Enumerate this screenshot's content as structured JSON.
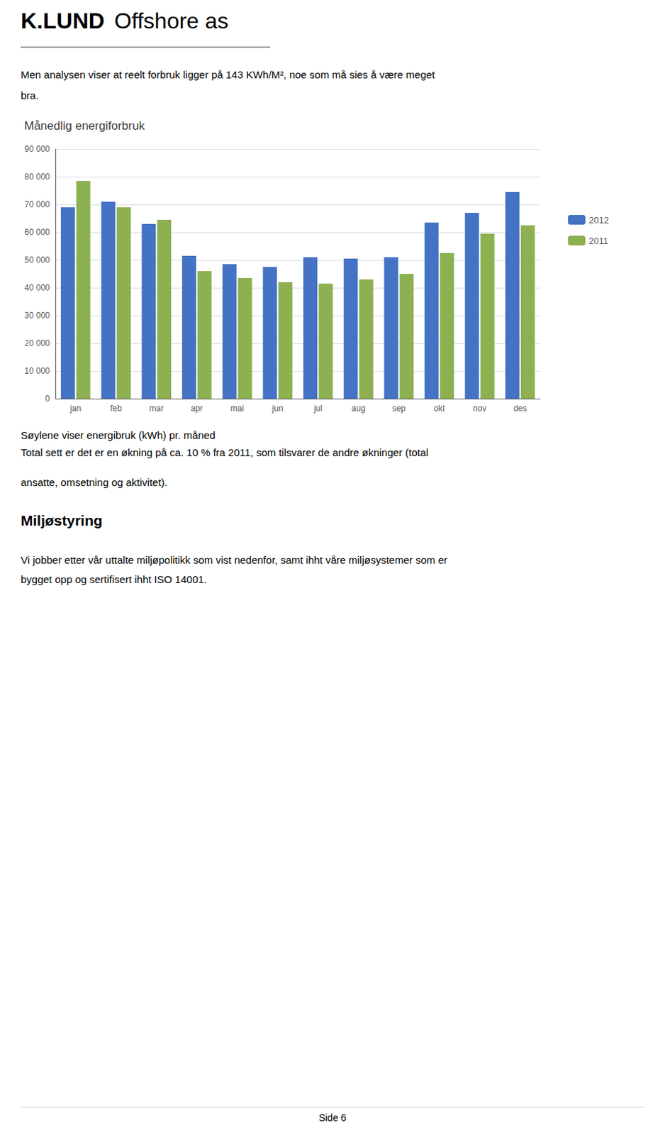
{
  "chart_data": {
    "type": "bar",
    "title": "Månedlig energiforbruk",
    "categories": [
      "jan",
      "feb",
      "mar",
      "apr",
      "mai",
      "jun",
      "jul",
      "aug",
      "sep",
      "okt",
      "nov",
      "des"
    ],
    "series": [
      {
        "name": "2012",
        "color": "#4472C4",
        "values": [
          69000,
          71000,
          63000,
          51500,
          48500,
          47500,
          51000,
          50500,
          51000,
          63500,
          67000,
          74500
        ]
      },
      {
        "name": "2011",
        "color": "#8DB050",
        "values": [
          78500,
          69000,
          64500,
          46000,
          43500,
          42000,
          41500,
          43000,
          45000,
          52500,
          59500,
          62500
        ]
      }
    ],
    "ylim": [
      0,
      90000
    ],
    "yticks": [
      0,
      {
        "value": 10000,
        "label": "10 000"
      },
      {
        "value": 20000,
        "label": "20 000"
      },
      {
        "value": 30000,
        "label": "30 000"
      },
      {
        "value": 40000,
        "label": "40 000"
      },
      {
        "value": 50000,
        "label": "50 000"
      },
      {
        "value": 60000,
        "label": "60 000"
      },
      {
        "value": 70000,
        "label": "70 000"
      },
      {
        "value": 80000,
        "label": "80 000"
      },
      {
        "value": 90000,
        "label": "90 000"
      }
    ],
    "grid": true,
    "legend": "right",
    "annotations": [
      "K.LUND",
      "Offshore as",
      "Men analysen viser at reelt forbruk ligger på 143 KWh/M², noe som må sies å være meget",
      "bra.",
      "Søylene viser energibruk (kWh) pr. måned",
      "Total sett er det er en økning på ca. 10 % fra 2011, som tilsvarer de andre økninger (total",
      "ansatte, omsetning og aktivitet).",
      "Miljøstyring",
      "Vi jobber etter vår uttalte miljøpolitikk som vist nedenfor, samt ihht våre miljøsystemer som er",
      "bygget opp og sertifisert ihht ISO 14001.",
      "Side 6"
    ]
  }
}
